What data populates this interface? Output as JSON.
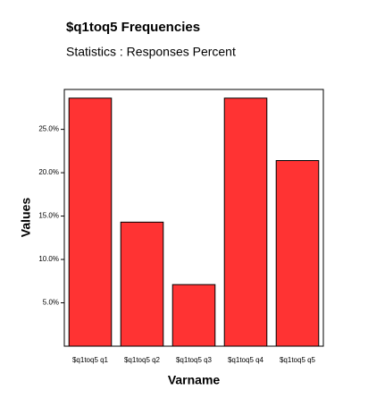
{
  "chart_data": {
    "type": "bar",
    "title": "$q1toq5 Frequencies",
    "subtitle": "Statistics : Responses Percent",
    "x_label": "Varname",
    "y_label": "Values",
    "categories": [
      "$q1toq5 q1",
      "$q1toq5 q2",
      "$q1toq5 q3",
      "$q1toq5 q4",
      "$q1toq5 q5"
    ],
    "values": [
      28.6,
      14.3,
      7.1,
      28.6,
      21.4
    ],
    "color": "#ff3333",
    "ylim": [
      0,
      29.6
    ],
    "yticks": [
      {
        "value": 5,
        "label": "5.0%"
      },
      {
        "value": 10,
        "label": "10.0%"
      },
      {
        "value": 15,
        "label": "15.0%"
      },
      {
        "value": 20,
        "label": "20.0%"
      },
      {
        "value": 25,
        "label": "25.0%"
      }
    ],
    "grid": false
  }
}
